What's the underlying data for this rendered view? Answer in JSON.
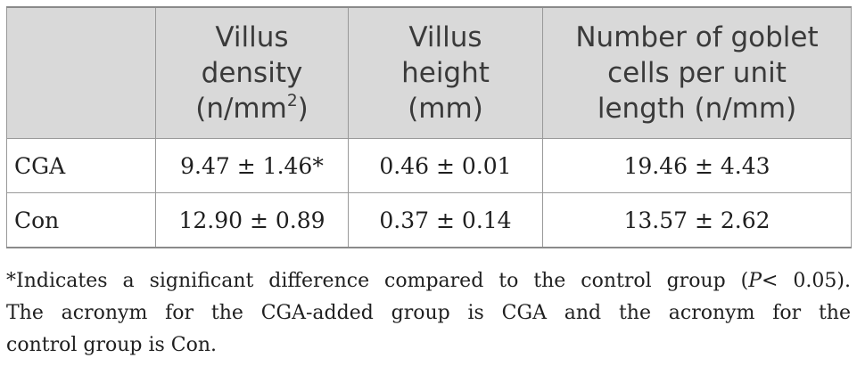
{
  "table": {
    "headers": [
      {
        "lines": [
          ""
        ]
      },
      {
        "lines": [
          "Villus",
          "density",
          "(n/mm",
          ")"
        ],
        "sup": "2"
      },
      {
        "lines": [
          "Villus",
          "height",
          "(mm)"
        ]
      },
      {
        "lines": [
          "Number of goblet",
          "cells per unit",
          "length (n/mm)"
        ]
      }
    ],
    "rows": [
      {
        "label": "CGA",
        "density": "9.47 ± 1.46*",
        "height": "0.46 ± 0.01",
        "goblet": "19.46 ± 4.43"
      },
      {
        "label": "Con",
        "density": "12.90 ± 0.89",
        "height": "0.37 ± 0.14",
        "goblet": "13.57 ± 2.62"
      }
    ]
  },
  "footnote": {
    "line1_a": "*Indicates a significant difference compared to the control group (",
    "line1_p": "P",
    "line1_b": "< 0.05).",
    "line2": "The acronym for the CGA-added group is CGA and the acronym for the",
    "line3": "control group is Con."
  }
}
